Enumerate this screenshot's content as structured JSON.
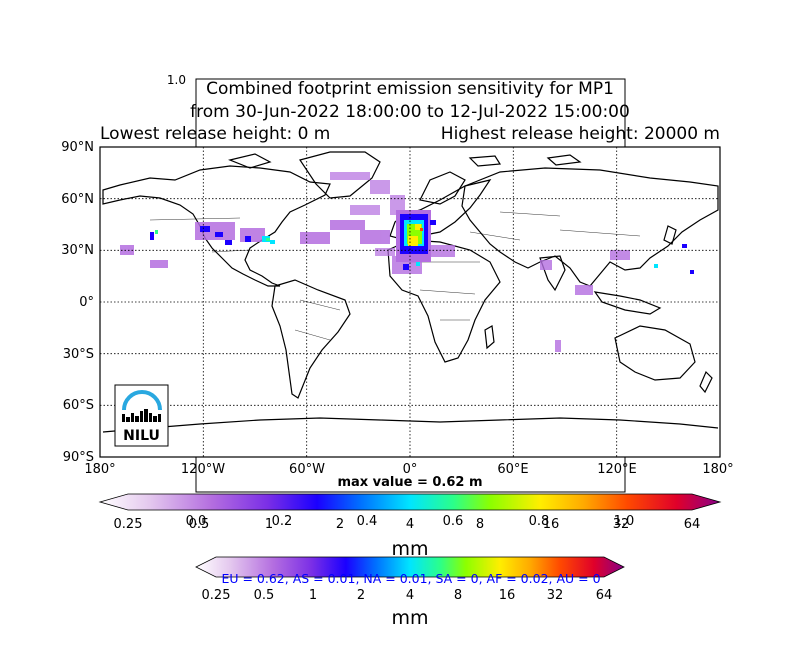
{
  "title": {
    "line1": "Combined footprint emission sensitivity for MP1",
    "line2": "from 30-Jun-2022 18:00:00 to 12-Jul-2022 15:00:00",
    "line3_left": "Lowest release height: 0 m",
    "line3_right": "Highest release height: 20000 m"
  },
  "stray_tick": "1.0",
  "lat_labels": [
    "90°N",
    "60°N",
    "30°N",
    "0°",
    "30°S",
    "60°S",
    "90°S"
  ],
  "lon_labels": [
    "180°",
    "120°W",
    "60°W",
    "0°",
    "60°E",
    "120°E",
    "180°"
  ],
  "max_value": "max value = 0.62 m",
  "logo_text": "NILU",
  "colorbar_main": {
    "ticks": [
      "0.25",
      "0.5",
      "1",
      "2",
      "4",
      "8",
      "16",
      "32",
      "64"
    ],
    "unit": "mm",
    "frac_ticks": [
      "0.0",
      "0.2",
      "0.4",
      "0.6",
      "0.8",
      "1.0"
    ]
  },
  "colorbar_second": {
    "ticks": [
      "0.25",
      "0.5",
      "1",
      "2",
      "4",
      "8",
      "16",
      "32",
      "64"
    ],
    "unit": "mm"
  },
  "regions": "EU = 0.62,  AS = 0.01,  NA = 0.01,  SA = 0,  AF = 0.02,  AU = 0",
  "colors": {
    "region_text": "#0000ff",
    "scale": [
      "#ffffff",
      "#e4c8ee",
      "#b46ee0",
      "#7b2fe6",
      "#1b00ff",
      "#0070ff",
      "#00e5ff",
      "#2bff8a",
      "#8cff00",
      "#ffee00",
      "#ffaa00",
      "#ff4a00",
      "#e0002a",
      "#880088"
    ]
  }
}
